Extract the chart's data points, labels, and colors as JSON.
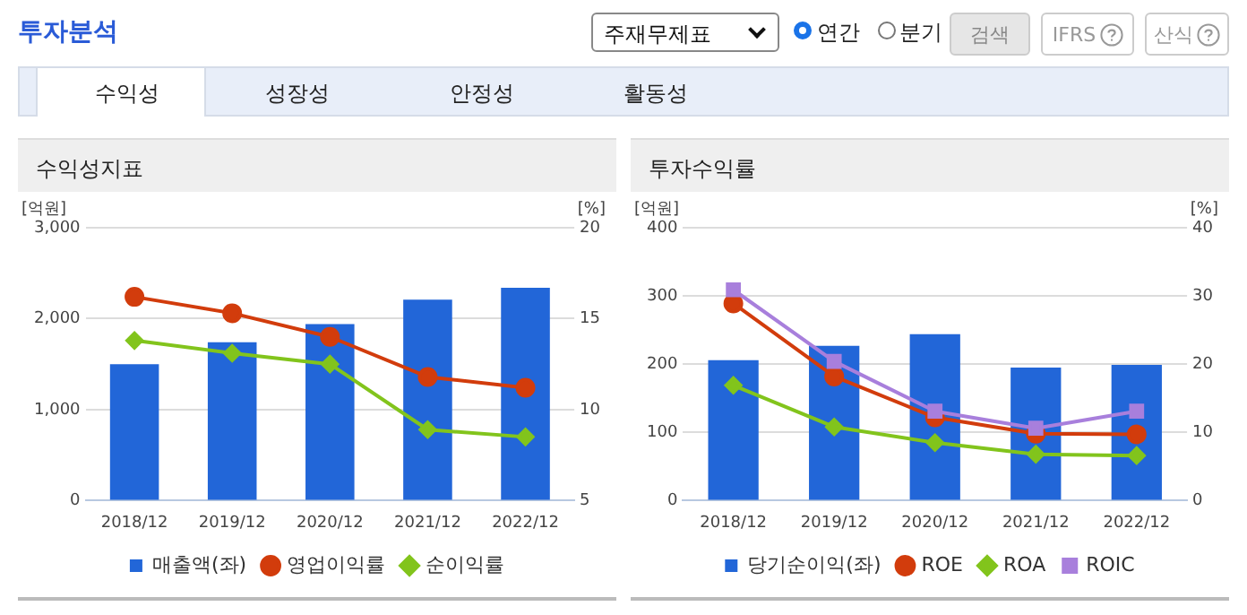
{
  "chart_data": [
    {
      "type": "other",
      "title": "투자분석",
      "annotations": [
        "주재무제표",
        "연간",
        "분기",
        "검색",
        "IFRS",
        "산식",
        "수익성",
        "성장성",
        "안정성",
        "활동성"
      ]
    },
    {
      "type": "bar",
      "title": "수익성지표",
      "ylabel": "[억원]",
      "y2label": "[%]",
      "categories": [
        "2018/12",
        "2019/12",
        "2020/12",
        "2021/12",
        "2022/12"
      ],
      "series": [
        {
          "name": "매출액(좌)",
          "type": "bar",
          "color": "#2266d8",
          "values": [
            1500,
            1740,
            1940,
            2210,
            2340
          ]
        },
        {
          "name": "영업이익률",
          "type": "line",
          "axis": "y2",
          "marker": "circle",
          "color": "#d23c0c",
          "values": [
            16.2,
            15.3,
            14.0,
            11.8,
            11.2
          ]
        },
        {
          "name": "순이익률",
          "type": "line",
          "axis": "y2",
          "marker": "diamond",
          "color": "#82c41c",
          "values": [
            13.8,
            13.1,
            12.5,
            8.9,
            8.5
          ]
        }
      ],
      "ylim": [
        0,
        3000
      ],
      "yticks": [
        0,
        {
          "value": 1000,
          "label": "1,000"
        },
        {
          "value": 2000,
          "label": "2,000"
        },
        {
          "value": 3000,
          "label": "3,000"
        }
      ],
      "y2lim": [
        5,
        20
      ],
      "y2ticks": [
        5,
        10,
        15,
        20
      ],
      "grid": "y",
      "legend": "bottom"
    },
    {
      "type": "bar",
      "title": "투자수익률",
      "ylabel": "[억원]",
      "y2label": "[%]",
      "categories": [
        "2018/12",
        "2019/12",
        "2020/12",
        "2021/12",
        "2022/12"
      ],
      "series": [
        {
          "name": "당기순이익(좌)",
          "type": "bar",
          "color": "#2266d8",
          "values": [
            206,
            227,
            244,
            195,
            199
          ]
        },
        {
          "name": "ROE",
          "type": "line",
          "axis": "y2",
          "marker": "circle",
          "color": "#d23c0c",
          "values": [
            28.9,
            18.2,
            12.2,
            9.8,
            9.7
          ]
        },
        {
          "name": "ROA",
          "type": "line",
          "axis": "y2",
          "marker": "diamond",
          "color": "#82c41c",
          "values": [
            16.9,
            10.8,
            8.5,
            6.8,
            6.6
          ]
        },
        {
          "name": "ROIC",
          "type": "line",
          "axis": "y2",
          "marker": "square",
          "color": "#a87fdc",
          "values": [
            30.9,
            20.4,
            13.1,
            10.6,
            13.1
          ]
        }
      ],
      "ylim": [
        0,
        400
      ],
      "yticks": [
        0,
        100,
        200,
        300,
        400
      ],
      "y2lim": [
        0,
        40
      ],
      "y2ticks": [
        0,
        10,
        20,
        30,
        40
      ],
      "grid": "y",
      "legend": "bottom"
    }
  ]
}
